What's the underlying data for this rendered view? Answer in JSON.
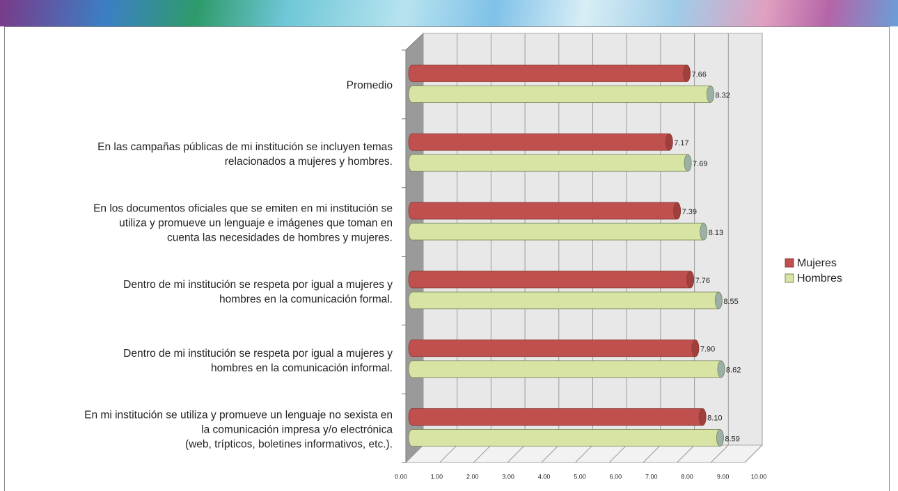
{
  "chart_data": {
    "type": "bar",
    "orientation": "horizontal",
    "categories": [
      "Promedio",
      "En las campañas públicas de mi institución se incluyen temas\nrelacionados a mujeres y hombres.",
      "En los documentos oficiales que se emiten en mi institución se\nutiliza y promueve un lenguaje e imágenes que toman en\ncuenta las necesidades de hombres y mujeres.",
      "Dentro de mi institución se respeta por igual a mujeres y\nhombres en la comunicación formal.",
      "Dentro de mi institución se respeta por igual a mujeres y\nhombres en la comunicación informal.",
      "En mi institución se utiliza y promueve un lenguaje no sexista en\nla comunicación impresa y/o electrónica\n(web, trípticos, boletines informativos, etc.)."
    ],
    "series": [
      {
        "name": "Mujeres",
        "color": "#c0504d",
        "values": [
          7.66,
          7.17,
          7.39,
          7.76,
          7.9,
          8.1
        ],
        "value_labels": [
          "7.66",
          "7.17",
          "7.39",
          "7.76",
          "7.90",
          "8.10"
        ]
      },
      {
        "name": "Hombres",
        "color": "#d7e4a4",
        "values": [
          8.32,
          7.69,
          8.13,
          8.55,
          8.62,
          8.59
        ],
        "value_labels": [
          "8.32",
          "7.69",
          "8.13",
          "8.55",
          "8.62",
          "8.59"
        ]
      }
    ],
    "xlim": [
      0,
      10
    ],
    "xticks": [
      {
        "value": 0,
        "label": "0.00"
      },
      {
        "value": 1,
        "label": "1.00"
      },
      {
        "value": 2,
        "label": "2.00"
      },
      {
        "value": 3,
        "label": "3.00"
      },
      {
        "value": 4,
        "label": "4.00"
      },
      {
        "value": 5,
        "label": "5.00"
      },
      {
        "value": 6,
        "label": "6.00"
      },
      {
        "value": 7,
        "label": "7.00"
      },
      {
        "value": 8,
        "label": "8.00"
      },
      {
        "value": 9,
        "label": "9.00"
      },
      {
        "value": 10,
        "label": "10.00"
      }
    ],
    "grid": true,
    "legend": "right"
  }
}
